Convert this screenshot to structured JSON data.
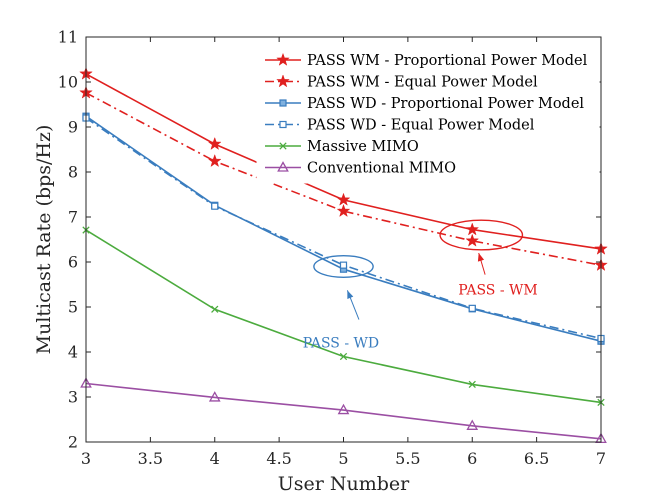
{
  "chart_data": {
    "type": "line",
    "title": "",
    "xlabel": "User Number",
    "ylabel": "Multicast Rate (bps/Hz)",
    "xlim": [
      3,
      7
    ],
    "ylim": [
      2,
      11
    ],
    "xticks": [
      3,
      3.5,
      4,
      4.5,
      5,
      5.5,
      6,
      6.5,
      7
    ],
    "xtick_labels": [
      "3",
      "3.5",
      "4",
      "4.5",
      "5",
      "5.5",
      "6",
      "6.5",
      "7"
    ],
    "yticks": [
      2,
      3,
      4,
      5,
      6,
      7,
      8,
      9,
      10,
      11
    ],
    "ytick_labels": [
      "2",
      "3",
      "4",
      "5",
      "6",
      "7",
      "8",
      "9",
      "10",
      "11"
    ],
    "grid": false,
    "legend_position": "top-right",
    "x": [
      3,
      4,
      5,
      6,
      7
    ],
    "series": [
      {
        "name": "PASS WM - Proportional Power Model",
        "values": [
          10.18,
          8.62,
          7.38,
          6.72,
          6.29
        ],
        "color": "#e0201f",
        "dash": "solid",
        "marker": "star"
      },
      {
        "name": "PASS WM - Equal Power Model",
        "values": [
          9.76,
          8.24,
          7.13,
          6.47,
          5.93
        ],
        "color": "#e0201f",
        "dash": "dashdot",
        "marker": "star"
      },
      {
        "name": "PASS WD - Proportional Power Model",
        "values": [
          9.24,
          7.26,
          5.84,
          4.96,
          4.24
        ],
        "color": "#3a7dbf",
        "dash": "solid",
        "marker": "square-filled"
      },
      {
        "name": "PASS WD - Equal Power Model",
        "values": [
          9.2,
          7.24,
          5.93,
          4.97,
          4.3
        ],
        "color": "#3a7dbf",
        "dash": "dashdot",
        "marker": "square-open"
      },
      {
        "name": "Massive MIMO",
        "values": [
          6.71,
          4.95,
          3.9,
          3.28,
          2.88
        ],
        "color": "#4cab3e",
        "dash": "solid",
        "marker": "x"
      },
      {
        "name": "Conventional MIMO",
        "values": [
          3.3,
          2.99,
          2.71,
          2.36,
          2.07
        ],
        "color": "#9b4fa3",
        "dash": "solid",
        "marker": "triangle"
      }
    ],
    "annotations": [
      {
        "text": "PASS - WM",
        "color": "#e0201f",
        "ellipse_center": [
          6.07,
          6.6
        ],
        "ellipse_radius": [
          0.32,
          0.33
        ],
        "arrow_from": [
          6.1,
          5.72
        ],
        "arrow_to": [
          6.05,
          6.2
        ],
        "text_at": [
          6.2,
          5.28
        ]
      },
      {
        "text": "PASS - WD",
        "color": "#3a7dbf",
        "ellipse_center": [
          5.0,
          5.9
        ],
        "ellipse_radius": [
          0.23,
          0.24
        ],
        "arrow_from": [
          5.12,
          4.72
        ],
        "arrow_to": [
          5.03,
          5.37
        ],
        "text_at": [
          4.98,
          4.1
        ]
      }
    ]
  }
}
